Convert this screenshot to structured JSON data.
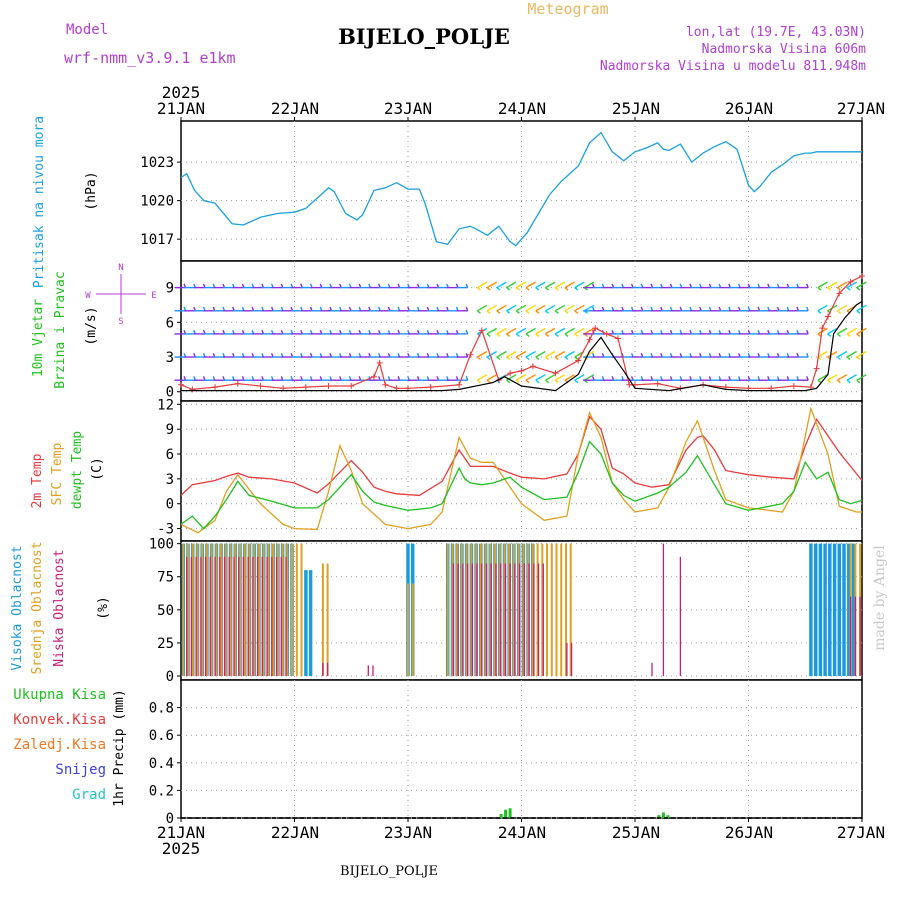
{
  "header": {
    "title": "BIJELO_POLJE",
    "subtitle": "Meteogram",
    "model_label": "Model",
    "model_name": "wrf-nmm_v3.9.1 e1km",
    "lonlat": "lon,lat (19.7E, 43.03N)",
    "altitude": "Nadmorska Visina 606m",
    "model_altitude": "Nadmorska Visina u modelu 811.948m",
    "footer_station": "BIJELO_POLJE",
    "watermark": "made by Angel"
  },
  "time_axis": {
    "year": "2025",
    "ticks": [
      "21JAN",
      "22JAN",
      "23JAN",
      "24JAN",
      "25JAN",
      "26JAN",
      "27JAN"
    ]
  },
  "panel_labels": {
    "pressure": [
      "Pritisak na nivou mora",
      "(hPa)"
    ],
    "wind": [
      "10m Vjetar",
      "Brzina i Pravac",
      "(m/s)"
    ],
    "compass": {
      "n": "N",
      "s": "S",
      "w": "W",
      "e": "E"
    },
    "temp": [
      "2m Temp",
      "SFC Temp",
      "dewpt Temp",
      "(C)"
    ],
    "cloud": [
      "Visoka Oblacnost",
      "Srednja Oblacnost",
      "Niska Oblacnost",
      "(%)"
    ],
    "precip": [
      "Ukupna Kisa",
      "Konvek.Kisa",
      "Zaledj.Kisa",
      "Snijeg",
      "Grad",
      "1hr Precip (mm)"
    ]
  },
  "colors": {
    "pressure": "#1aa0e0",
    "temp2m": "#e83c3c",
    "sfc": "#e0a020",
    "dewpt": "#20c020",
    "high_cloud": "#1a9be0",
    "mid_cloud": "#e0a020",
    "low_cloud": "#c81e7a",
    "total_precip": "#20c020",
    "conv_precip": "#e83c3c",
    "frz_precip": "#f07820",
    "snow": "#4040e0",
    "hail": "#20c8c8",
    "gust": "#e83c3c",
    "wind_speed": "#000000",
    "model_text": "#b040d0",
    "subtitle": "#e8b860"
  },
  "chart_data": [
    {
      "type": "line",
      "name": "pressure",
      "ylabel": "(hPa)",
      "ylim": [
        1015.3,
        1026.2
      ],
      "yticks": [
        1017,
        1020,
        1023
      ],
      "x_days": [
        0.0,
        0.05,
        0.12,
        0.2,
        0.3,
        0.45,
        0.55,
        0.7,
        0.85,
        1.0,
        1.1,
        1.2,
        1.3,
        1.35,
        1.45,
        1.55,
        1.6,
        1.7,
        1.8,
        1.9,
        2.0,
        2.1,
        2.15,
        2.25,
        2.35,
        2.45,
        2.55,
        2.6,
        2.7,
        2.8,
        2.9,
        2.95,
        3.05,
        3.15,
        3.25,
        3.35,
        3.45,
        3.5,
        3.6,
        3.7,
        3.8,
        3.9,
        4.0,
        4.1,
        4.2,
        4.25,
        4.3,
        4.4,
        4.5,
        4.6,
        4.7,
        4.8,
        4.9,
        5.0,
        5.05,
        5.1,
        5.2,
        5.3,
        5.4,
        5.5,
        5.55,
        5.6,
        5.7,
        5.8,
        5.9,
        6.0
      ],
      "values": [
        1021.8,
        1022.1,
        1020.8,
        1020.0,
        1019.8,
        1018.2,
        1018.1,
        1018.7,
        1019.0,
        1019.1,
        1019.4,
        1020.2,
        1021.0,
        1020.7,
        1019.0,
        1018.5,
        1018.9,
        1020.8,
        1021.0,
        1021.4,
        1020.9,
        1020.9,
        1019.8,
        1016.8,
        1016.6,
        1017.8,
        1018.0,
        1017.8,
        1017.3,
        1018.0,
        1016.8,
        1016.5,
        1017.5,
        1019.0,
        1020.5,
        1021.5,
        1022.3,
        1022.7,
        1024.5,
        1025.3,
        1023.8,
        1023.1,
        1023.8,
        1024.1,
        1024.5,
        1024.0,
        1023.9,
        1024.4,
        1023.0,
        1023.7,
        1024.2,
        1024.6,
        1024.0,
        1021.2,
        1020.7,
        1021.1,
        1022.2,
        1022.8,
        1023.5,
        1023.7,
        1023.7,
        1023.8,
        1023.8,
        1023.8,
        1023.8,
        1023.8
      ]
    },
    {
      "type": "line",
      "name": "wind",
      "ylabel": "(m/s)",
      "ylim": [
        -0.8,
        11.3
      ],
      "yticks": [
        0,
        3,
        6,
        9
      ],
      "series": [
        {
          "name": "wind_speed",
          "x": [
            0.0,
            0.5,
            1.0,
            1.5,
            2.0,
            2.3,
            2.45,
            2.55,
            2.65,
            2.75,
            2.85,
            3.0,
            3.3,
            3.5,
            3.6,
            3.7,
            3.8,
            3.9,
            4.0,
            4.3,
            4.6,
            4.8,
            5.0,
            5.3,
            5.5,
            5.6,
            5.7,
            5.75,
            5.85,
            5.95,
            6.0
          ],
          "values": [
            0.1,
            0.1,
            0.1,
            0.1,
            0.1,
            0.1,
            0.2,
            0.4,
            0.6,
            0.8,
            1.3,
            0.5,
            0.1,
            1.5,
            3.5,
            4.7,
            3.2,
            1.8,
            0.3,
            0.1,
            0.6,
            0.2,
            0.1,
            0.1,
            0.1,
            0.3,
            1.5,
            5.0,
            6.4,
            7.5,
            7.8
          ]
        },
        {
          "name": "gust",
          "x": [
            0.0,
            0.1,
            0.3,
            0.5,
            0.7,
            0.9,
            1.1,
            1.3,
            1.5,
            1.7,
            1.75,
            1.8,
            1.9,
            2.0,
            2.2,
            2.45,
            2.55,
            2.65,
            2.8,
            2.9,
            3.0,
            3.1,
            3.3,
            3.5,
            3.6,
            3.65,
            3.75,
            3.85,
            3.95,
            4.0,
            4.2,
            4.4,
            4.6,
            4.8,
            5.0,
            5.2,
            5.4,
            5.55,
            5.6,
            5.65,
            5.7,
            5.8,
            5.9,
            6.0
          ],
          "values": [
            0.6,
            0.2,
            0.4,
            0.7,
            0.5,
            0.3,
            0.4,
            0.5,
            0.5,
            1.3,
            2.5,
            0.6,
            0.3,
            0.3,
            0.4,
            0.6,
            3.2,
            5.3,
            1.0,
            1.6,
            1.8,
            2.2,
            1.6,
            2.7,
            4.5,
            5.5,
            5.0,
            4.6,
            0.6,
            0.6,
            0.7,
            0.3,
            0.6,
            0.4,
            0.3,
            0.3,
            0.5,
            0.4,
            2.0,
            5.5,
            6.5,
            8.5,
            9.5,
            10.0
          ]
        }
      ],
      "barb_rows": [
        1,
        3,
        5,
        7,
        9
      ]
    },
    {
      "type": "line",
      "name": "temperature",
      "ylabel": "(C)",
      "ylim": [
        -4.5,
        12.4
      ],
      "yticks": [
        -3,
        0,
        3,
        6,
        9,
        12
      ],
      "series": [
        {
          "name": "2m Temp",
          "x": [
            0.0,
            0.1,
            0.3,
            0.4,
            0.5,
            0.6,
            0.8,
            1.0,
            1.2,
            1.3,
            1.5,
            1.6,
            1.7,
            1.8,
            1.9,
            2.1,
            2.3,
            2.45,
            2.55,
            2.65,
            2.75,
            2.9,
            3.0,
            3.2,
            3.4,
            3.5,
            3.6,
            3.7,
            3.8,
            3.9,
            4.0,
            4.15,
            4.3,
            4.45,
            4.55,
            4.6,
            4.7,
            4.8,
            5.0,
            5.2,
            5.4,
            5.5,
            5.6,
            5.8,
            6.0
          ],
          "values": [
            1.0,
            2.3,
            2.8,
            3.3,
            3.7,
            3.2,
            3.0,
            2.5,
            1.3,
            2.4,
            5.2,
            3.8,
            2.0,
            1.5,
            1.2,
            1.0,
            2.7,
            6.5,
            4.5,
            4.5,
            4.5,
            3.7,
            3.2,
            3.0,
            3.6,
            6.0,
            10.5,
            9.0,
            4.3,
            3.6,
            2.5,
            2.0,
            2.3,
            6.5,
            8.0,
            8.2,
            6.5,
            4.0,
            3.5,
            3.2,
            3.0,
            7.0,
            10.2,
            6.2,
            2.8
          ]
        },
        {
          "name": "SFC Temp",
          "x": [
            0.0,
            0.15,
            0.3,
            0.4,
            0.5,
            0.7,
            0.9,
            1.0,
            1.2,
            1.3,
            1.4,
            1.5,
            1.6,
            1.8,
            2.0,
            2.2,
            2.3,
            2.45,
            2.55,
            2.65,
            2.75,
            2.9,
            3.0,
            3.2,
            3.4,
            3.5,
            3.6,
            3.7,
            3.8,
            3.9,
            4.0,
            4.2,
            4.3,
            4.45,
            4.55,
            4.7,
            4.8,
            5.0,
            5.3,
            5.4,
            5.55,
            5.7,
            5.8,
            5.95,
            6.0
          ],
          "values": [
            -2.5,
            -3.5,
            -2.0,
            1.5,
            3.5,
            0.0,
            -2.5,
            -3.0,
            -3.1,
            1.5,
            7.0,
            4.0,
            0.0,
            -2.5,
            -3.0,
            -2.5,
            -1.0,
            8.0,
            5.5,
            5.0,
            5.0,
            2.0,
            0.0,
            -2.0,
            -1.5,
            6.0,
            11.0,
            8.0,
            2.5,
            0.5,
            -1.0,
            -0.5,
            2.0,
            7.5,
            10.0,
            4.0,
            0.5,
            -0.5,
            -1.0,
            1.5,
            11.5,
            6.0,
            -0.3,
            -1.0,
            -1.0
          ]
        },
        {
          "name": "dewpt Temp",
          "x": [
            0.0,
            0.1,
            0.2,
            0.3,
            0.4,
            0.5,
            0.6,
            0.8,
            1.0,
            1.2,
            1.3,
            1.5,
            1.6,
            1.7,
            1.8,
            1.9,
            2.0,
            2.2,
            2.3,
            2.45,
            2.5,
            2.55,
            2.65,
            2.75,
            2.9,
            3.0,
            3.2,
            3.4,
            3.5,
            3.6,
            3.7,
            3.8,
            3.9,
            4.0,
            4.2,
            4.3,
            4.45,
            4.55,
            4.7,
            4.8,
            5.0,
            5.3,
            5.4,
            5.5,
            5.6,
            5.7,
            5.8,
            5.9,
            6.0
          ],
          "values": [
            -2.5,
            -1.5,
            -3.0,
            -1.5,
            0.5,
            2.7,
            1.0,
            0.3,
            -0.5,
            -0.5,
            0.5,
            3.5,
            1.5,
            0.2,
            -0.2,
            -0.5,
            -0.8,
            -0.5,
            0.0,
            4.3,
            3.0,
            2.5,
            2.3,
            2.5,
            3.2,
            2.0,
            0.5,
            0.8,
            3.8,
            7.5,
            6.0,
            2.5,
            1.0,
            0.3,
            1.3,
            2.0,
            3.8,
            5.8,
            2.3,
            0.0,
            -0.8,
            0.0,
            1.5,
            5.0,
            3.0,
            3.8,
            0.5,
            0.0,
            0.4
          ]
        }
      ]
    },
    {
      "type": "bar",
      "name": "cloud_cover",
      "ylabel": "(%)",
      "ylim": [
        -3,
        102
      ],
      "yticks": [
        0,
        25,
        50,
        75,
        100
      ],
      "series": [
        {
          "name": "Visoka Oblacnost",
          "segments": [
            [
              0.02,
              0.98,
              100
            ],
            [
              1.1,
              1.15,
              80
            ],
            [
              2.0,
              2.05,
              100
            ],
            [
              2.35,
              3.1,
              100
            ],
            [
              5.55,
              5.95,
              100
            ]
          ]
        },
        {
          "name": "Srednja Oblacnost",
          "segments": [
            [
              0.02,
              1.1,
              100
            ],
            [
              1.25,
              1.3,
              85
            ],
            [
              2.0,
              2.05,
              70
            ],
            [
              2.35,
              3.45,
              100
            ],
            [
              5.9,
              6.0,
              100
            ]
          ]
        },
        {
          "name": "Niska Oblacnost",
          "segments": [
            [
              0.05,
              0.95,
              90
            ],
            [
              1.25,
              1.3,
              10
            ],
            [
              1.65,
              1.7,
              8
            ],
            [
              2.4,
              3.2,
              85
            ],
            [
              3.4,
              3.45,
              25
            ],
            [
              4.15,
              4.16,
              10
            ],
            [
              4.25,
              4.26,
              100
            ],
            [
              4.4,
              4.41,
              90
            ],
            [
              5.9,
              6.0,
              60
            ]
          ]
        }
      ]
    },
    {
      "type": "bar",
      "name": "precipitation",
      "ylabel": "1hr Precip (mm)",
      "ylim": [
        0,
        1.0
      ],
      "yticks": [
        0,
        0.2,
        0.4,
        0.6,
        0.8
      ],
      "series": [
        {
          "name": "Ukupna Kisa",
          "x": [
            2.82,
            2.86,
            2.9,
            4.21,
            4.25,
            4.29
          ],
          "values": [
            0.03,
            0.06,
            0.07,
            0.02,
            0.04,
            0.02
          ]
        },
        {
          "name": "Konvek.Kisa",
          "x": [],
          "values": []
        },
        {
          "name": "Zaledj.Kisa",
          "x": [],
          "values": []
        },
        {
          "name": "Snijeg",
          "x": [],
          "values": []
        },
        {
          "name": "Grad",
          "x": [],
          "values": []
        }
      ]
    }
  ]
}
